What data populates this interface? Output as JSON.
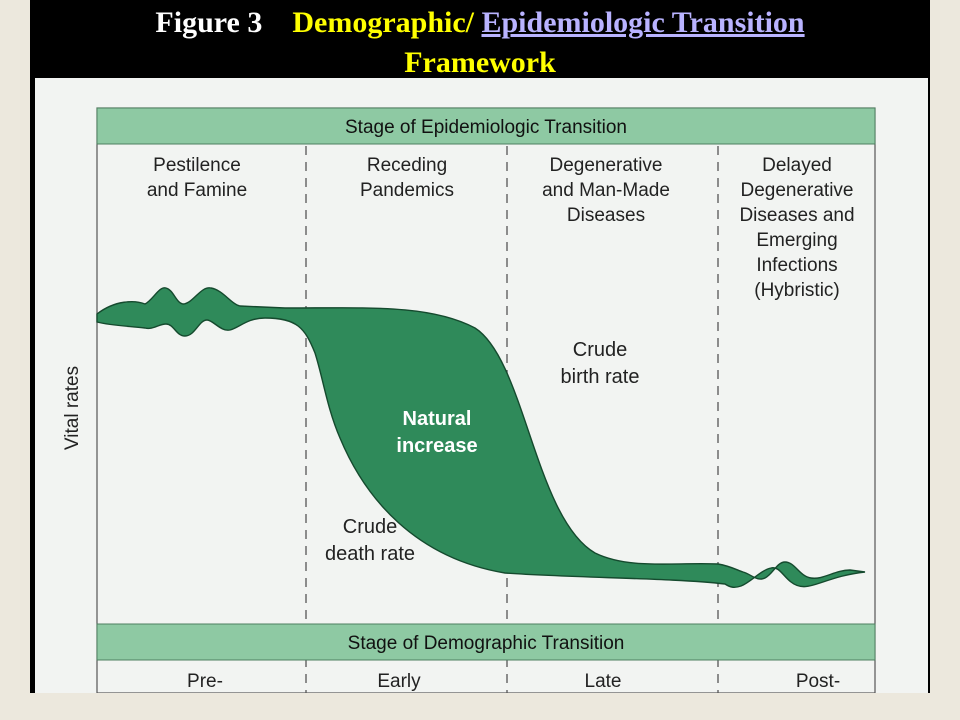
{
  "title": {
    "figure_label": "Figure 3",
    "part1": "Demographic/",
    "link_text": "Epidemiologic Transition",
    "line2": "Framework"
  },
  "diagram": {
    "top_band_label": "Stage of Epidemiologic Transition",
    "epi_stages": [
      [
        "Pestilence",
        "and Famine"
      ],
      [
        "Receding",
        "Pandemics"
      ],
      [
        "Degenerative",
        "and Man-Made",
        "Diseases"
      ],
      [
        "Delayed",
        "Degenerative",
        "Diseases and",
        "Emerging",
        "Infections",
        "(Hybristic)"
      ]
    ],
    "y_axis_label": "Vital rates",
    "birth_rate_label": [
      "Crude",
      "birth rate"
    ],
    "death_rate_label": [
      "Crude",
      "death rate"
    ],
    "area_label": [
      "Natural",
      "increase"
    ],
    "bottom_band_label": "Stage of Demographic Transition",
    "demo_stages": [
      "Pre-",
      "Early",
      "Late",
      "Post-"
    ]
  },
  "colors": {
    "slide_background": "#000000",
    "title_white": "#ffffff",
    "title_yellow": "#ffff00",
    "title_link": "#b9b3ff",
    "band_green": "#8ec9a3",
    "area_green": "#2f8a5a",
    "panel_background": "#f2f4f2",
    "outer_background": "#ece8dd"
  }
}
